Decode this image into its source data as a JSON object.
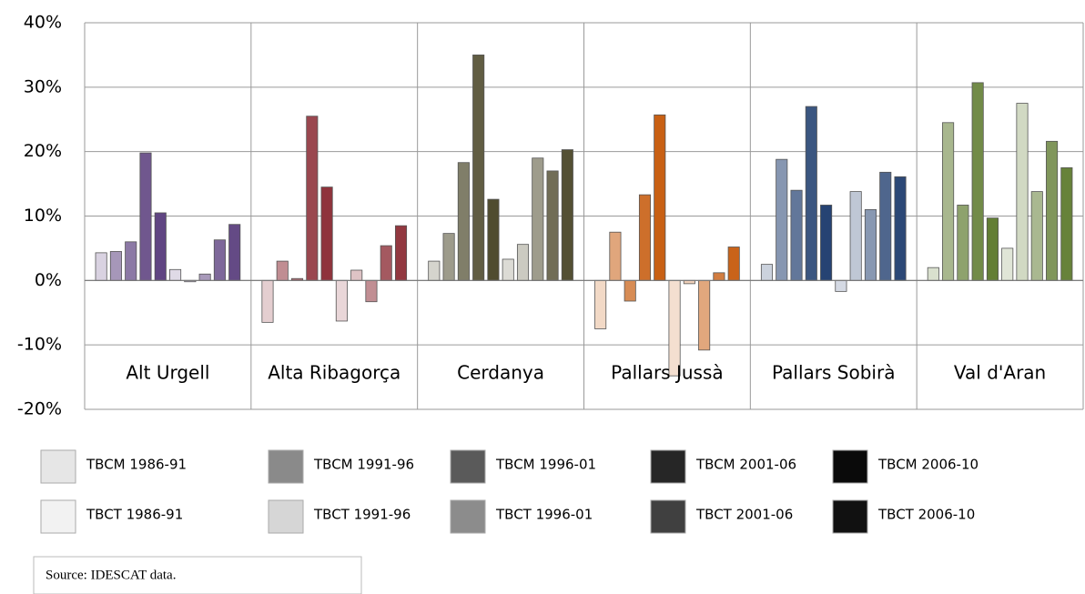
{
  "chart_data": {
    "type": "bar",
    "categories": [
      "Alt Urgell",
      "Alta Ribagorça",
      "Cerdanya",
      "Pallars Jussà",
      "Pallars Sobirà",
      "Val d'Aran"
    ],
    "category_colors": [
      "#5b3f7e",
      "#8b2c35",
      "#4a4628",
      "#c65a0c",
      "#1f3d6e",
      "#5e7a2e"
    ],
    "series": [
      {
        "name": "TBCM 1986-91",
        "color": "#e6e6e6",
        "values": [
          4.3,
          -6.5,
          3,
          -7.5,
          2.5,
          2
        ]
      },
      {
        "name": "TBCM 1991-96",
        "color": "#8a8a8a",
        "values": [
          4.5,
          3,
          7.3,
          7.5,
          18.8,
          24.5
        ]
      },
      {
        "name": "TBCM 1996-01",
        "color": "#5a5a5a",
        "values": [
          6,
          0.3,
          18.3,
          -3.2,
          14,
          11.7
        ]
      },
      {
        "name": "TBCM 2001-06",
        "color": "#262626",
        "values": [
          19.8,
          25.5,
          35,
          13.3,
          27,
          30.7
        ]
      },
      {
        "name": "TBCM 2006-10",
        "color": "#0a0a0a",
        "values": [
          10.5,
          14.5,
          12.6,
          25.7,
          11.7,
          9.7
        ]
      },
      {
        "name": "TBCT 1986-91",
        "color": "#f2f2f2",
        "values": [
          1.7,
          -6.3,
          3.3,
          -14.8,
          -1.7,
          5
        ]
      },
      {
        "name": "TBCT 1991-96",
        "color": "#d6d6d6",
        "values": [
          -0.2,
          1.6,
          5.6,
          -0.5,
          13.8,
          27.5
        ]
      },
      {
        "name": "TBCT 1996-01",
        "color": "#8c8c8c",
        "values": [
          1,
          -3.3,
          19,
          -10.8,
          11,
          13.8
        ]
      },
      {
        "name": "TBCT 2001-06",
        "color": "#404040",
        "values": [
          6.3,
          5.4,
          17,
          1.2,
          16.8,
          21.6
        ]
      },
      {
        "name": "TBCT 2006-10",
        "color": "#111111",
        "values": [
          8.7,
          8.5,
          20.3,
          5.2,
          16.1,
          17.5
        ]
      }
    ],
    "ylim": [
      -20,
      40
    ],
    "yticks": [
      {
        "value": -20,
        "label": "-20%"
      },
      {
        "value": -10,
        "label": "-10%"
      },
      {
        "value": 0,
        "label": "0%"
      },
      {
        "value": 10,
        "label": "10%"
      },
      {
        "value": 20,
        "label": "20%"
      },
      {
        "value": 30,
        "label": "30%"
      },
      {
        "value": 40,
        "label": "40%"
      }
    ],
    "grid": true,
    "source": "Source: IDESCAT data."
  }
}
